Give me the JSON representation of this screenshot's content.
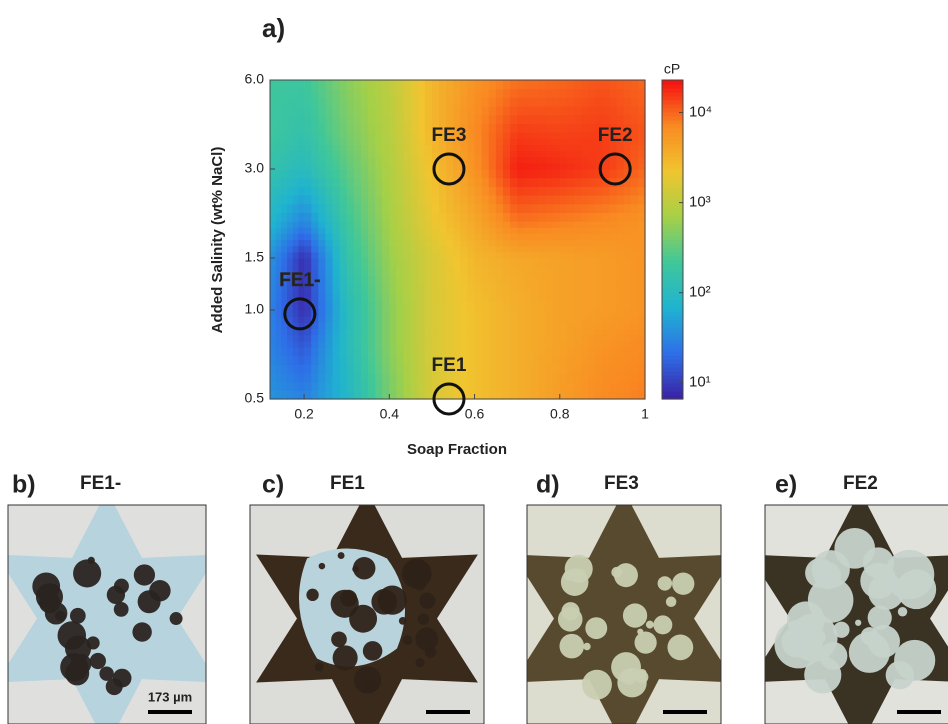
{
  "chart_data": {
    "type": "contour",
    "title": "a)",
    "x_label": "Soap Fraction",
    "y_label": "Added Salinity (wt% NaCl)",
    "x": [
      0.12,
      0.2,
      0.3,
      0.4,
      0.5,
      0.6,
      0.7,
      0.8,
      0.9,
      1.0
    ],
    "y": [
      0.5,
      0.75,
      1.0,
      1.5,
      2.0,
      3.0,
      4.0,
      6.0
    ],
    "z": [
      [
        40,
        30,
        80,
        400,
        1500,
        2500,
        3500,
        5000,
        7000,
        8000
      ],
      [
        30,
        15,
        100,
        500,
        1500,
        2500,
        3500,
        4500,
        6000,
        7000
      ],
      [
        30,
        8,
        100,
        500,
        1500,
        2500,
        3500,
        4500,
        5000,
        6000
      ],
      [
        40,
        8,
        150,
        600,
        1500,
        3000,
        4000,
        4500,
        5000,
        6000
      ],
      [
        80,
        30,
        200,
        700,
        2000,
        4000,
        9000,
        8000,
        7000,
        6000
      ],
      [
        150,
        100,
        300,
        800,
        2500,
        6000,
        20000,
        18000,
        15000,
        10000
      ],
      [
        200,
        150,
        400,
        900,
        3000,
        7000,
        15000,
        14000,
        15000,
        12000
      ],
      [
        200,
        200,
        500,
        1000,
        3000,
        6000,
        9000,
        10000,
        12000,
        10000
      ]
    ],
    "xlim": [
      0.12,
      1
    ],
    "xticks": [
      {
        "value": 0.2,
        "label": "0.2"
      },
      {
        "value": 0.4,
        "label": "0.4"
      },
      {
        "value": 0.6,
        "label": "0.6"
      },
      {
        "value": 0.8,
        "label": "0.8"
      },
      1
    ],
    "ylim": [
      0.5,
      6
    ],
    "yscale": "log",
    "yticks": [
      0.5,
      {
        "value": 1,
        "label": "1.0"
      },
      1.5,
      {
        "value": 3,
        "label": "3.0"
      },
      {
        "value": 6,
        "label": "6.0"
      }
    ],
    "colorbar": {
      "label": "cP",
      "scale": "log",
      "lim": [
        6.6,
        23000
      ],
      "ticks": [
        {
          "value": 10,
          "label": "10¹"
        },
        {
          "value": 100,
          "label": "10²"
        },
        {
          "value": 1000,
          "label": "10³"
        },
        {
          "value": 10000,
          "label": "10⁴"
        }
      ]
    },
    "colormap": [
      "#3b1fa3",
      "#2e6fe8",
      "#1fb3d0",
      "#3fc79a",
      "#a6d047",
      "#f0c530",
      "#f98a22",
      "#f40f10"
    ],
    "markers": [
      {
        "label": "FE1-",
        "x": 0.19,
        "y": 0.97
      },
      {
        "label": "FE1",
        "x": 0.54,
        "y": 0.5
      },
      {
        "label": "FE3",
        "x": 0.54,
        "y": 3.0
      },
      {
        "label": "FE2",
        "x": 0.93,
        "y": 3.0
      }
    ]
  },
  "panels": [
    {
      "letter": "b)",
      "title": "FE1-",
      "scale_bar": "173 µm"
    },
    {
      "letter": "c)",
      "title": "FE1"
    },
    {
      "letter": "d)",
      "title": "FE3"
    },
    {
      "letter": "e)",
      "title": "FE2"
    }
  ]
}
